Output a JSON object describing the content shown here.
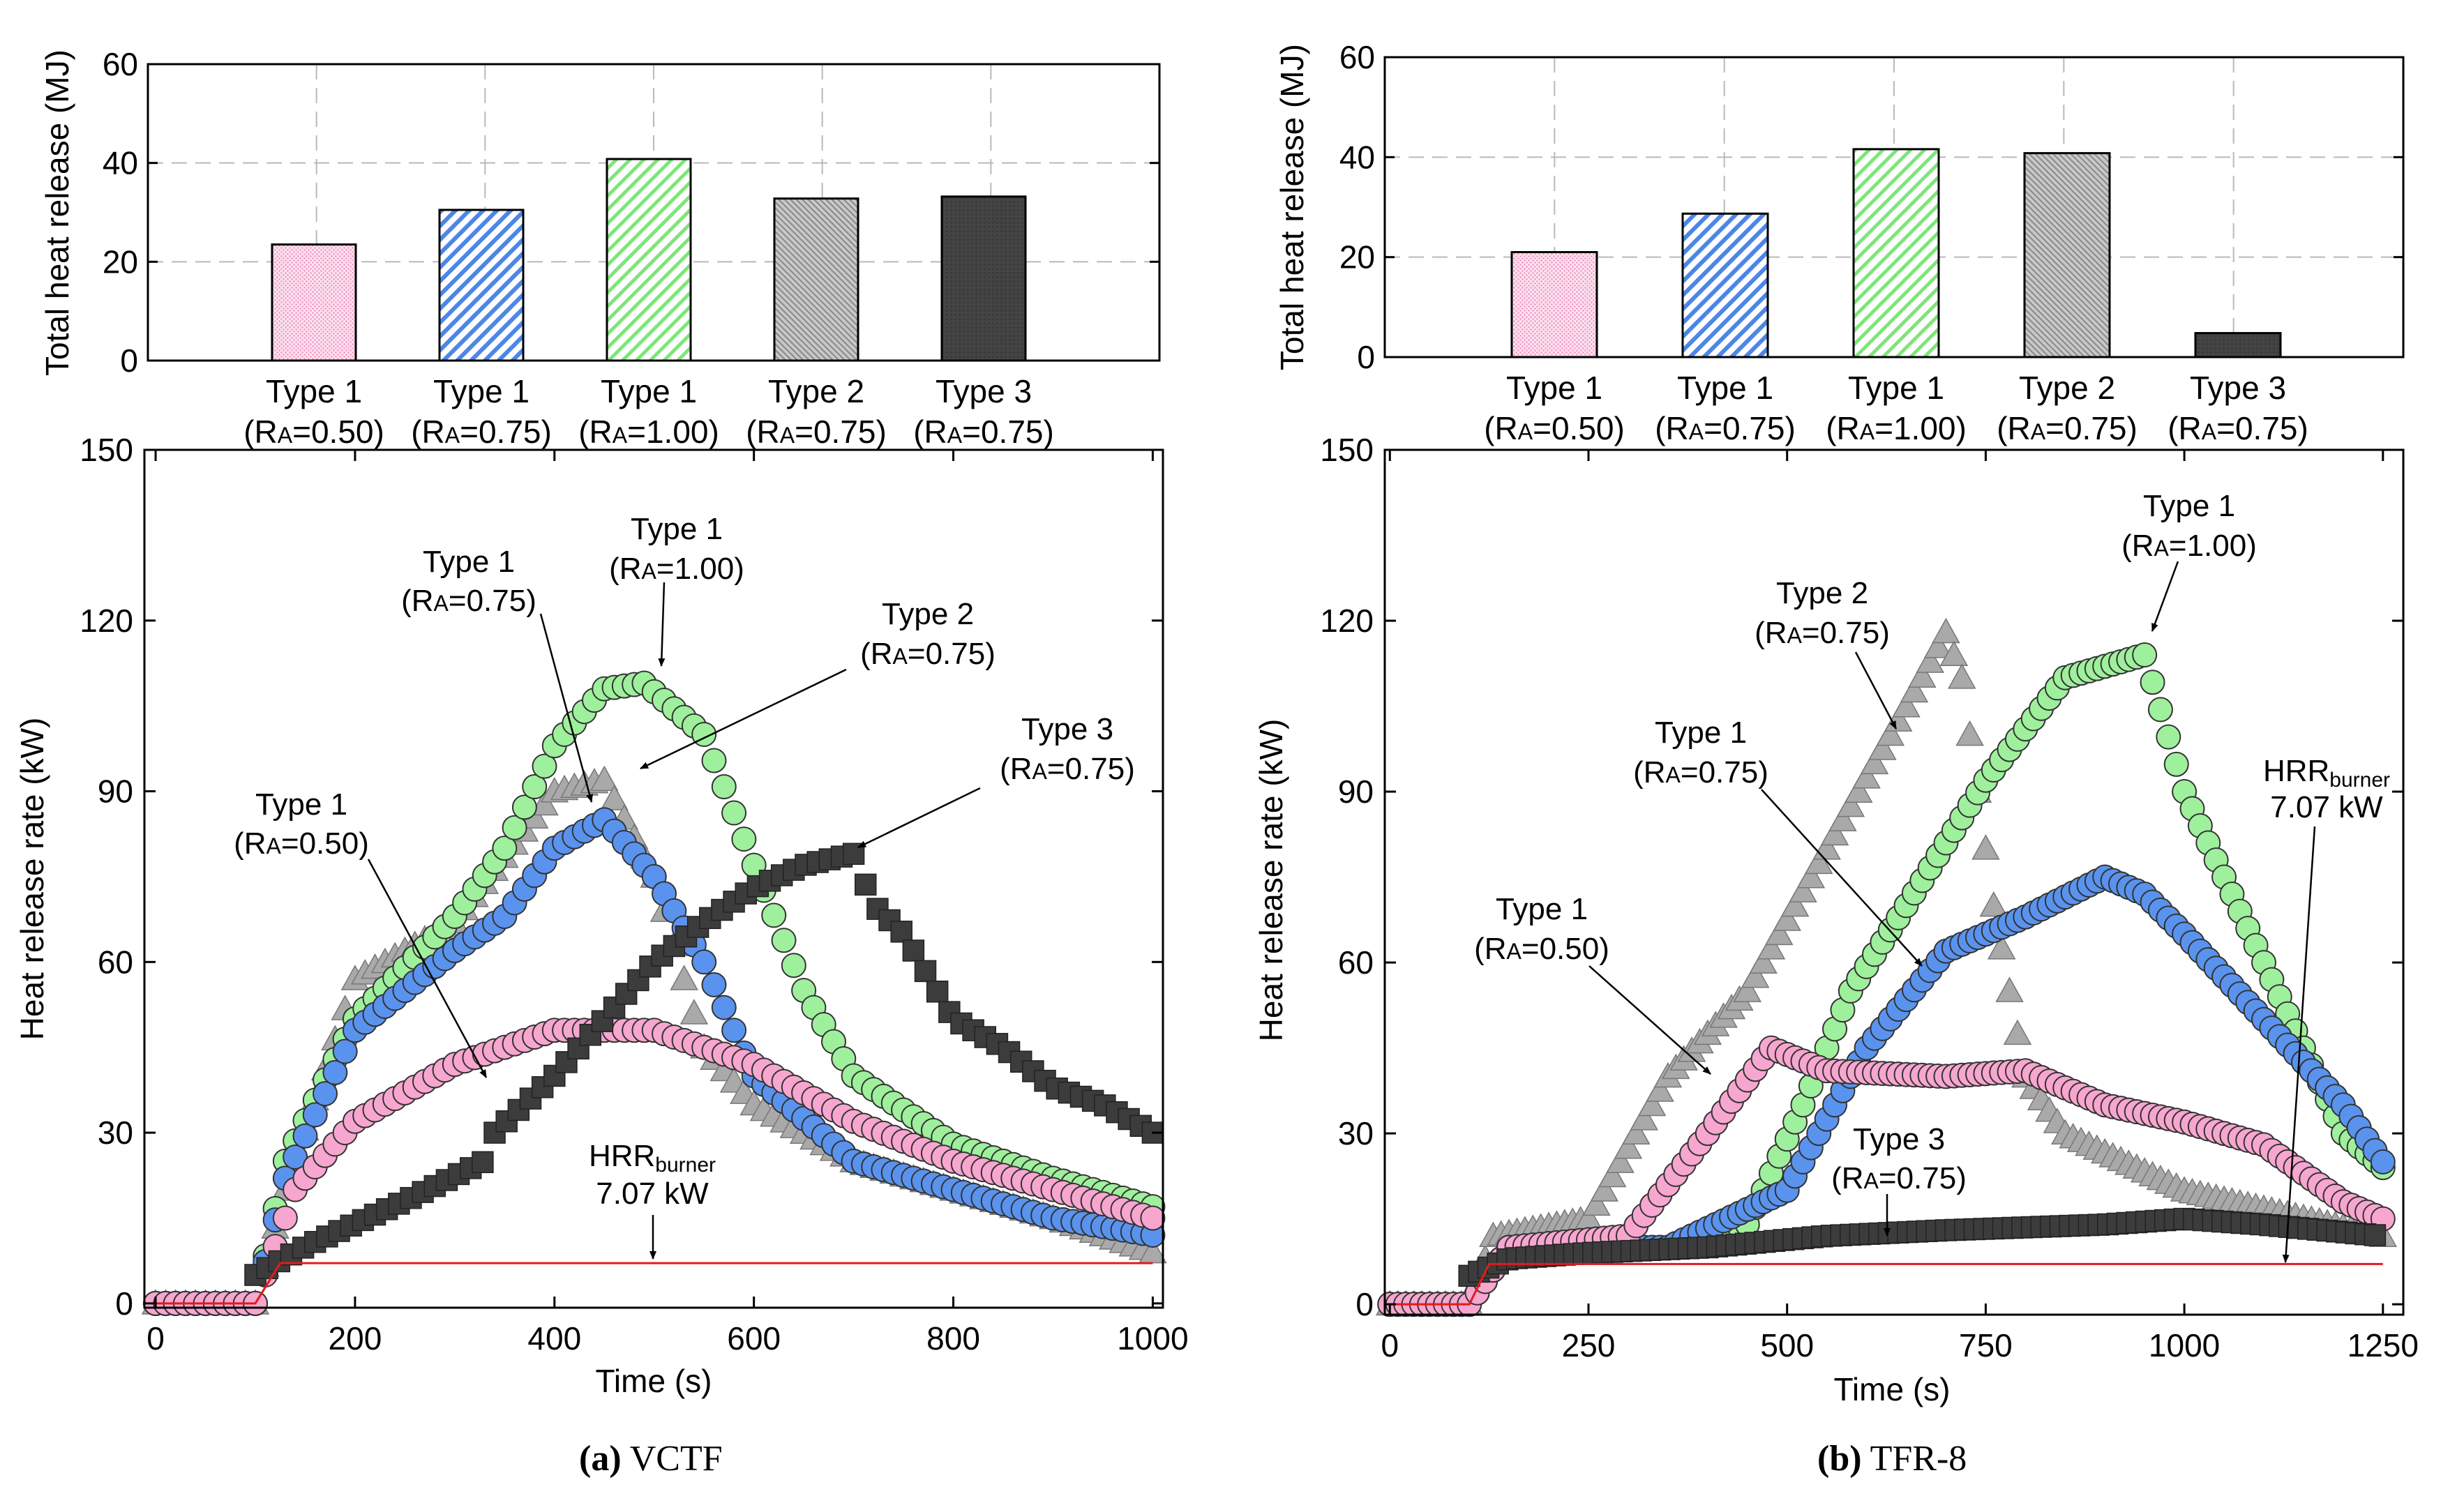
{
  "figure": {
    "panel_a": {
      "caption_letter": "(a)",
      "caption_name": "VCTF"
    },
    "panel_b": {
      "caption_letter": "(b)",
      "caption_name": "TFR-8"
    }
  },
  "styles": {
    "colors": {
      "type1_050": "#f7a6cf",
      "type1_075": "#5a93ee",
      "type1_100": "#9ff09c",
      "type2_075": "#a9a9a9",
      "type3_075": "#3c3c3c",
      "burner": "#e21b1b",
      "grid": "#b9b9b9"
    }
  },
  "chart_data": [
    {
      "id": "a_bar",
      "type": "bar",
      "panel": "a",
      "ylabel": "Total heat release (MJ)",
      "ylim": [
        0,
        60
      ],
      "yticks": [
        0,
        20,
        40,
        60
      ],
      "categories": [
        {
          "line1": "Type 1",
          "line2": "(RA=0.50)",
          "sub_r": "R",
          "sub_a": "A",
          "sub_v": "=0.50)",
          "series": "type1_050"
        },
        {
          "line1": "Type 1",
          "line2": "(RA=0.75)",
          "sub_r": "R",
          "sub_a": "A",
          "sub_v": "=0.75)",
          "series": "type1_075"
        },
        {
          "line1": "Type 1",
          "line2": "(RA=1.00)",
          "sub_r": "R",
          "sub_a": "A",
          "sub_v": "=1.00)",
          "series": "type1_100"
        },
        {
          "line1": "Type 2",
          "line2": "(RA=0.75)",
          "sub_r": "R",
          "sub_a": "A",
          "sub_v": "=0.75)",
          "series": "type2_075"
        },
        {
          "line1": "Type 3",
          "line2": "(RA=0.75)",
          "sub_r": "R",
          "sub_a": "A",
          "sub_v": "=0.75)",
          "series": "type3_075"
        }
      ],
      "values": [
        23.5,
        30.5,
        40.8,
        32.8,
        33.2
      ]
    },
    {
      "id": "b_bar",
      "type": "bar",
      "panel": "b",
      "ylabel": "Total heat release (MJ)",
      "ylim": [
        0,
        60
      ],
      "yticks": [
        0,
        20,
        40,
        60
      ],
      "categories": [
        {
          "line1": "Type 1",
          "line2": "(RA=0.50)",
          "sub_r": "R",
          "sub_a": "A",
          "sub_v": "=0.50)",
          "series": "type1_050"
        },
        {
          "line1": "Type 1",
          "line2": "(RA=0.75)",
          "sub_r": "R",
          "sub_a": "A",
          "sub_v": "=0.75)",
          "series": "type1_075"
        },
        {
          "line1": "Type 1",
          "line2": "(RA=1.00)",
          "sub_r": "R",
          "sub_a": "A",
          "sub_v": "=1.00)",
          "series": "type1_100"
        },
        {
          "line1": "Type 2",
          "line2": "(RA=0.75)",
          "sub_r": "R",
          "sub_a": "A",
          "sub_v": "=0.75)",
          "series": "type2_075"
        },
        {
          "line1": "Type 3",
          "line2": "(RA=0.75)",
          "sub_r": "R",
          "sub_a": "A",
          "sub_v": "=0.75)",
          "series": "type3_075"
        }
      ],
      "values": [
        21.0,
        28.7,
        41.6,
        40.8,
        4.8
      ]
    },
    {
      "id": "a_line",
      "type": "scatter",
      "panel": "a",
      "xlabel": "Time (s)",
      "ylabel": "Heat release rate (kW)",
      "xlim": [
        0,
        1000
      ],
      "ylim": [
        0,
        150
      ],
      "xticks": [
        0,
        200,
        400,
        600,
        800,
        1000
      ],
      "yticks": [
        0,
        30,
        60,
        90,
        120,
        150
      ],
      "series": [
        {
          "key": "type2_075",
          "name": "Type 2 (RA=0.75)",
          "marker": "triangle",
          "step": 10,
          "points": [
            [
              0,
              0
            ],
            [
              100,
              0
            ],
            [
              130,
              20
            ],
            [
              200,
              57
            ],
            [
              300,
              67
            ],
            [
              400,
              90
            ],
            [
              450,
              92
            ],
            [
              500,
              75
            ],
            [
              550,
              45
            ],
            [
              600,
              35
            ],
            [
              700,
              25
            ],
            [
              800,
              20
            ],
            [
              900,
              15
            ],
            [
              1000,
              9
            ]
          ]
        },
        {
          "key": "type1_100",
          "name": "Type 1 (RA=1.00)",
          "marker": "circle",
          "step": 10,
          "points": [
            [
              0,
              0
            ],
            [
              100,
              0
            ],
            [
              130,
              25
            ],
            [
              200,
              50
            ],
            [
              300,
              68
            ],
            [
              350,
              80
            ],
            [
              400,
              98
            ],
            [
              450,
              108
            ],
            [
              490,
              109
            ],
            [
              550,
              100
            ],
            [
              600,
              77
            ],
            [
              650,
              55
            ],
            [
              700,
              40
            ],
            [
              800,
              28
            ],
            [
              900,
              22
            ],
            [
              1000,
              17
            ]
          ]
        },
        {
          "key": "type1_075",
          "name": "Type 1 (RA=0.75)",
          "marker": "circle",
          "step": 10,
          "points": [
            [
              0,
              0
            ],
            [
              100,
              0
            ],
            [
              130,
              22
            ],
            [
              200,
              48
            ],
            [
              300,
              62
            ],
            [
              350,
              68
            ],
            [
              400,
              80
            ],
            [
              450,
              85
            ],
            [
              500,
              75
            ],
            [
              550,
              60
            ],
            [
              600,
              40
            ],
            [
              700,
              25
            ],
            [
              800,
              20
            ],
            [
              900,
              15
            ],
            [
              1000,
              12
            ]
          ]
        },
        {
          "key": "type1_050",
          "name": "Type 1 (RA=0.50)",
          "marker": "circle",
          "step": 10,
          "points": [
            [
              0,
              0
            ],
            [
              100,
              0
            ],
            [
              140,
              20
            ],
            [
              200,
              32
            ],
            [
              300,
              42
            ],
            [
              400,
              48
            ],
            [
              500,
              48
            ],
            [
              550,
              45
            ],
            [
              600,
              42
            ],
            [
              700,
              32
            ],
            [
              800,
              25
            ],
            [
              900,
              20
            ],
            [
              1000,
              15
            ]
          ]
        },
        {
          "key": "type3_075",
          "name": "Type 3 (RA=0.75)",
          "marker": "square",
          "step": 12,
          "points": [
            [
              100,
              5
            ],
            [
              150,
              10
            ],
            [
              250,
              18
            ],
            [
              330,
              25
            ],
            [
              340,
              30
            ],
            [
              400,
              40
            ],
            [
              450,
              50
            ],
            [
              500,
              60
            ],
            [
              550,
              67
            ],
            [
              600,
              73
            ],
            [
              650,
              77
            ],
            [
              700,
              79
            ],
            [
              720,
              70
            ],
            [
              750,
              65
            ],
            [
              800,
              50
            ],
            [
              850,
              45
            ],
            [
              900,
              38
            ],
            [
              950,
              35
            ],
            [
              1000,
              30
            ]
          ]
        },
        {
          "key": "burner",
          "name": "HRRburner 7.07 kW",
          "marker": "line",
          "points": [
            [
              0,
              0
            ],
            [
              100,
              0
            ],
            [
              125,
              7.07
            ],
            [
              1000,
              7.07
            ]
          ]
        }
      ]
    },
    {
      "id": "b_line",
      "type": "scatter",
      "panel": "b",
      "xlabel": "Time (s)",
      "ylabel": "Heat release rate (kW)",
      "xlim": [
        0,
        1250
      ],
      "ylim": [
        0,
        150
      ],
      "xticks": [
        0,
        250,
        500,
        750,
        1000,
        1250
      ],
      "yticks": [
        0,
        30,
        60,
        90,
        120,
        150
      ],
      "series": [
        {
          "key": "type2_075",
          "name": "Type 2 (RA=0.75)",
          "marker": "triangle",
          "step": 10,
          "points": [
            [
              0,
              0
            ],
            [
              100,
              0
            ],
            [
              130,
              12
            ],
            [
              250,
              15
            ],
            [
              350,
              40
            ],
            [
              450,
              55
            ],
            [
              550,
              80
            ],
            [
              650,
              105
            ],
            [
              700,
              118
            ],
            [
              720,
              110
            ],
            [
              760,
              70
            ],
            [
              800,
              40
            ],
            [
              850,
              30
            ],
            [
              1000,
              20
            ],
            [
              1250,
              12
            ]
          ]
        },
        {
          "key": "type1_100",
          "name": "Type 1 (RA=1.00)",
          "marker": "circle",
          "step": 10,
          "points": [
            [
              0,
              0
            ],
            [
              100,
              0
            ],
            [
              150,
              10
            ],
            [
              350,
              10
            ],
            [
              450,
              14
            ],
            [
              520,
              35
            ],
            [
              580,
              55
            ],
            [
              650,
              70
            ],
            [
              750,
              92
            ],
            [
              850,
              110
            ],
            [
              950,
              114
            ],
            [
              1000,
              90
            ],
            [
              1100,
              60
            ],
            [
              1200,
              30
            ],
            [
              1250,
              24
            ]
          ]
        },
        {
          "key": "type1_075",
          "name": "Type 1 (RA=0.75)",
          "marker": "circle",
          "step": 10,
          "points": [
            [
              0,
              0
            ],
            [
              100,
              0
            ],
            [
              150,
              10
            ],
            [
              350,
              10
            ],
            [
              500,
              20
            ],
            [
              600,
              45
            ],
            [
              700,
              62
            ],
            [
              800,
              68
            ],
            [
              900,
              75
            ],
            [
              950,
              72
            ],
            [
              1000,
              65
            ],
            [
              1100,
              50
            ],
            [
              1200,
              35
            ],
            [
              1250,
              25
            ]
          ]
        },
        {
          "key": "type1_050",
          "name": "Type 1 (RA=0.50)",
          "marker": "circle",
          "step": 10,
          "points": [
            [
              0,
              0
            ],
            [
              100,
              0
            ],
            [
              150,
              10
            ],
            [
              300,
              12
            ],
            [
              400,
              30
            ],
            [
              480,
              45
            ],
            [
              550,
              41
            ],
            [
              700,
              40
            ],
            [
              800,
              41
            ],
            [
              900,
              35
            ],
            [
              1000,
              32
            ],
            [
              1100,
              28
            ],
            [
              1200,
              18
            ],
            [
              1250,
              15
            ]
          ]
        },
        {
          "key": "type3_075",
          "name": "Type 3 (RA=0.75)",
          "marker": "square",
          "step": 12,
          "points": [
            [
              100,
              5
            ],
            [
              150,
              8
            ],
            [
              250,
              9
            ],
            [
              400,
              10
            ],
            [
              550,
              12
            ],
            [
              700,
              13
            ],
            [
              900,
              14
            ],
            [
              1000,
              15
            ],
            [
              1100,
              14
            ],
            [
              1250,
              12
            ]
          ]
        },
        {
          "key": "burner",
          "name": "HRRburner 7.07 kW",
          "marker": "line",
          "points": [
            [
              0,
              0
            ],
            [
              100,
              0
            ],
            [
              125,
              7.07
            ],
            [
              1250,
              7.07
            ]
          ]
        }
      ]
    }
  ],
  "annotations": {
    "a": [
      {
        "line1": "Type 1",
        "line2": "(RA=0.75)",
        "sub_r": "R",
        "sub_a": "A",
        "sub_v": "=0.75)"
      },
      {
        "line1": "Type 1",
        "line2": "(RA=1.00)",
        "sub_r": "R",
        "sub_a": "A",
        "sub_v": "=1.00)"
      },
      {
        "line1": "Type 2",
        "line2": "(RA=0.75)",
        "sub_r": "R",
        "sub_a": "A",
        "sub_v": "=0.75)"
      },
      {
        "line1": "Type 3",
        "line2": "(RA=0.75)",
        "sub_r": "R",
        "sub_a": "A",
        "sub_v": "=0.75)"
      },
      {
        "line1": "Type 1",
        "line2": "(RA=0.50)",
        "sub_r": "R",
        "sub_a": "A",
        "sub_v": "=0.50)"
      },
      {
        "line1": "HRRburner",
        "main": "HRR",
        "sub": "burner",
        "line2": "7.07 kW"
      }
    ],
    "b": [
      {
        "line1": "Type 1",
        "line2": "(RA=1.00)",
        "sub_r": "R",
        "sub_a": "A",
        "sub_v": "=1.00)"
      },
      {
        "line1": "Type 2",
        "line2": "(RA=0.75)",
        "sub_r": "R",
        "sub_a": "A",
        "sub_v": "=0.75)"
      },
      {
        "line1": "Type 1",
        "line2": "(RA=0.75)",
        "sub_r": "R",
        "sub_a": "A",
        "sub_v": "=0.75)"
      },
      {
        "line1": "HRRburner",
        "main": "HRR",
        "sub": "burner",
        "line2": "7.07 kW"
      },
      {
        "line1": "Type 1",
        "line2": "(RA=0.50)",
        "sub_r": "R",
        "sub_a": "A",
        "sub_v": "=0.50)"
      },
      {
        "line1": "Type 3",
        "line2": "(RA=0.75)",
        "sub_r": "R",
        "sub_a": "A",
        "sub_v": "=0.75)"
      }
    ]
  }
}
